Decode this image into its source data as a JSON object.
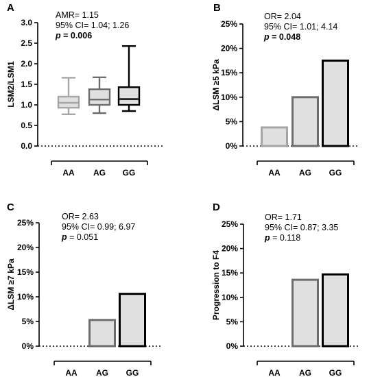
{
  "colors": {
    "light": "#a6a6a6",
    "medium": "#6d6d6d",
    "dark": "#000000",
    "fill": "#e0e0e0"
  },
  "chart_data": [
    {
      "panel": "A",
      "type": "box",
      "ylabel": "LSM2/LSM1",
      "categories": [
        "AA",
        "AG",
        "GG"
      ],
      "ylim": [
        0,
        3.0
      ],
      "yticks": [
        "0.0",
        "0.5",
        "1.0",
        "1.5",
        "2.0",
        "2.5",
        "3.0"
      ],
      "yticks_values": [
        0,
        0.5,
        1.0,
        1.5,
        2.0,
        2.5,
        3.0
      ],
      "boxes": [
        {
          "min": 0.77,
          "q1": 0.93,
          "median": 1.05,
          "q3": 1.2,
          "max": 1.66
        },
        {
          "min": 0.8,
          "q1": 1.0,
          "median": 1.13,
          "q3": 1.38,
          "max": 1.67
        },
        {
          "min": 0.85,
          "q1": 1.0,
          "median": 1.14,
          "q3": 1.43,
          "max": 2.43
        }
      ],
      "stats": [
        "AMR= 1.15",
        "95% CI= 1.04; 1.26",
        "p = 0.006"
      ],
      "p_bold": true
    },
    {
      "panel": "B",
      "type": "bar",
      "ylabel": "ΔLSM ≥5 kPa",
      "categories": [
        "AA",
        "AG",
        "GG"
      ],
      "values": [
        3.8,
        10.0,
        17.5
      ],
      "ylim": [
        0,
        25
      ],
      "yticks": [
        "0%",
        "5%",
        "10%",
        "15%",
        "20%",
        "25%"
      ],
      "yticks_values": [
        0,
        5,
        10,
        15,
        20,
        25
      ],
      "stats": [
        "OR= 2.04",
        "95% CI= 1.01; 4.14",
        "p = 0.048"
      ],
      "p_bold": true
    },
    {
      "panel": "C",
      "type": "bar",
      "ylabel": "ΔLSM ≥7 kPa",
      "categories": [
        "AA",
        "AG",
        "GG"
      ],
      "values": [
        0,
        5.3,
        10.6
      ],
      "ylim": [
        0,
        25
      ],
      "yticks": [
        "0%",
        "5%",
        "10%",
        "15%",
        "20%",
        "25%"
      ],
      "yticks_values": [
        0,
        5,
        10,
        15,
        20,
        25
      ],
      "stats": [
        "OR= 2.63",
        "95% CI= 0.99; 6.97",
        "p = 0.051"
      ],
      "p_bold": false
    },
    {
      "panel": "D",
      "type": "bar",
      "ylabel": "Progression to F4",
      "categories": [
        "AA",
        "AG",
        "GG"
      ],
      "values": [
        0,
        13.6,
        14.7
      ],
      "ylim": [
        0,
        25
      ],
      "yticks": [
        "0%",
        "5%",
        "10%",
        "15%",
        "20%",
        "25%"
      ],
      "yticks_values": [
        0,
        5,
        10,
        15,
        20,
        25
      ],
      "stats": [
        "OR= 1.71",
        "95% CI= 0.87; 3.35",
        "p = 0.118"
      ],
      "p_bold": false
    }
  ]
}
